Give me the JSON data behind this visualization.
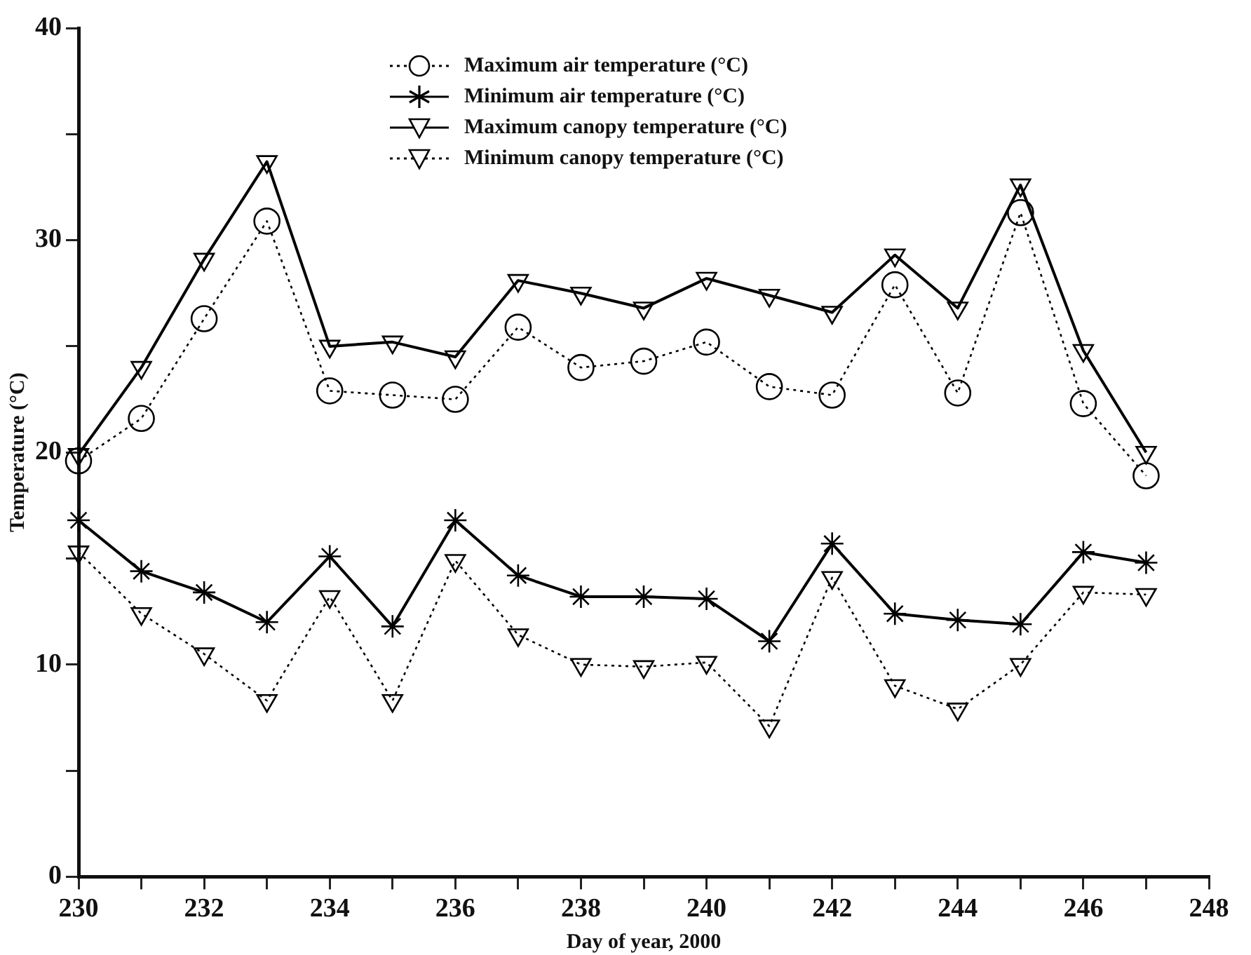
{
  "chart_data": {
    "type": "line",
    "xlabel": "Day of year, 2000",
    "ylabel": "Temperature (°C)",
    "x": [
      230,
      231,
      232,
      233,
      234,
      235,
      236,
      237,
      238,
      239,
      240,
      241,
      242,
      243,
      244,
      245,
      246,
      247
    ],
    "series": [
      {
        "name": "Maximum air temperature (°C)",
        "color": "#000000",
        "marker": "circle",
        "line_style": "dotted",
        "values": [
          19.6,
          21.6,
          26.3,
          30.9,
          22.9,
          22.7,
          22.5,
          25.9,
          24.0,
          24.3,
          25.2,
          23.1,
          22.7,
          27.9,
          22.8,
          31.3,
          22.3,
          18.9
        ]
      },
      {
        "name": "Minimum air temperature (°C)",
        "color": "#000000",
        "marker": "cross",
        "line_style": "solid",
        "values": [
          16.8,
          14.4,
          13.4,
          12.0,
          15.1,
          11.8,
          16.8,
          14.2,
          13.2,
          13.2,
          13.1,
          11.1,
          15.7,
          12.4,
          12.1,
          11.9,
          15.3,
          14.8
        ]
      },
      {
        "name": "Maximum canopy temperature (°C)",
        "color": "#000000",
        "marker": "triangle",
        "line_style": "solid",
        "values": [
          19.9,
          24.0,
          29.1,
          33.7,
          25.0,
          25.2,
          24.5,
          28.1,
          27.5,
          26.8,
          28.2,
          27.4,
          26.6,
          29.3,
          26.8,
          32.6,
          24.8,
          20.0
        ]
      },
      {
        "name": "Minimum canopy temperature (°C)",
        "color": "#000000",
        "marker": "triangle",
        "line_style": "dotted",
        "values": [
          15.3,
          12.4,
          10.5,
          8.3,
          13.2,
          8.3,
          14.9,
          11.4,
          10.0,
          9.9,
          10.1,
          7.1,
          14.1,
          9.0,
          7.9,
          10.0,
          13.4,
          13.3
        ]
      }
    ],
    "xlim": [
      230,
      248
    ],
    "xticks": [
      230,
      {
        "value": 231,
        "label": null
      },
      232,
      {
        "value": 233,
        "label": null
      },
      234,
      {
        "value": 235,
        "label": null
      },
      236,
      {
        "value": 237,
        "label": null
      },
      238,
      {
        "value": 239,
        "label": null
      },
      240,
      {
        "value": 241,
        "label": null
      },
      242,
      {
        "value": 243,
        "label": null
      },
      244,
      {
        "value": 245,
        "label": null
      },
      246,
      {
        "value": 247,
        "label": null
      },
      248
    ],
    "ylim": [
      0,
      40
    ],
    "yticks": [
      0,
      {
        "value": 5,
        "label": null
      },
      10,
      {
        "value": 15,
        "label": null
      },
      20,
      {
        "value": 25,
        "label": null
      },
      30,
      {
        "value": 35,
        "label": null
      },
      40
    ],
    "grid": false,
    "legend": "top"
  }
}
